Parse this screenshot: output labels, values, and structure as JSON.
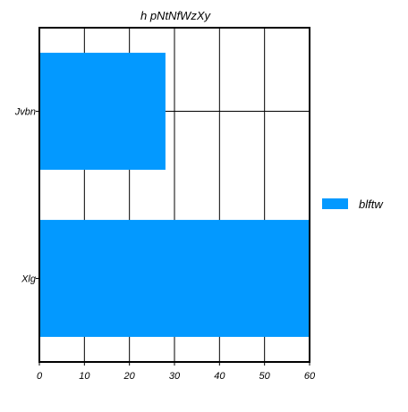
{
  "chart_data": {
    "type": "bar",
    "orientation": "horizontal",
    "title": "h pNtNfWzXy",
    "xlabel": "",
    "ylabel": "",
    "categories": [
      "Jvbn",
      "Xlg"
    ],
    "series": [
      {
        "name": "blftw",
        "values": [
          28,
          60
        ],
        "color": "#0399ff"
      }
    ],
    "xlim": [
      0,
      60
    ],
    "x_ticks": [
      0,
      10,
      20,
      30,
      40,
      50,
      60
    ],
    "grid": true,
    "legend_position": "right"
  }
}
